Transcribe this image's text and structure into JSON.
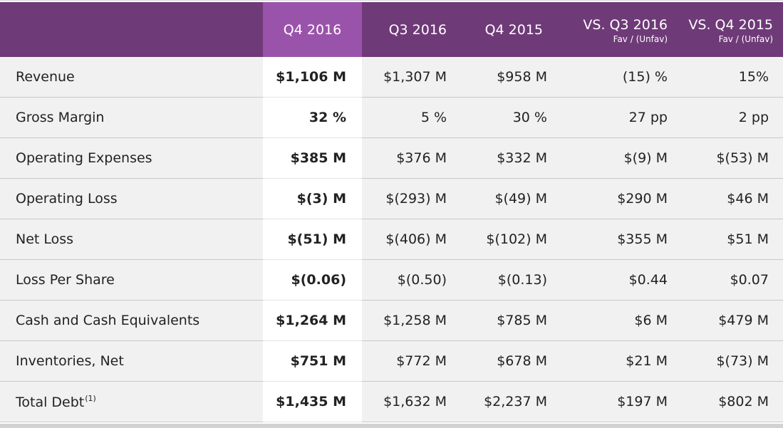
{
  "header": {
    "columns": [
      {
        "label": "Q4 2016",
        "sub": ""
      },
      {
        "label": "Q3 2016",
        "sub": ""
      },
      {
        "label": "Q4 2015",
        "sub": ""
      },
      {
        "label": "VS. Q3 2016",
        "sub": "Fav / (Unfav)"
      },
      {
        "label": "VS. Q4 2015",
        "sub": "Fav / (Unfav)"
      }
    ]
  },
  "rows": [
    {
      "label": "Revenue",
      "footnote": "",
      "values": [
        "$1,106 M",
        "$1,307 M",
        "$958 M",
        "(15) %",
        "15%"
      ]
    },
    {
      "label": "Gross Margin",
      "footnote": "",
      "values": [
        "32 %",
        "5 %",
        "30 %",
        "27 pp",
        "2 pp"
      ]
    },
    {
      "label": "Operating Expenses",
      "footnote": "",
      "values": [
        "$385 M",
        "$376 M",
        "$332 M",
        "$(9) M",
        "$(53) M"
      ]
    },
    {
      "label": "Operating Loss",
      "footnote": "",
      "values": [
        "$(3) M",
        "$(293) M",
        "$(49) M",
        "$290 M",
        "$46 M"
      ]
    },
    {
      "label": "Net Loss",
      "footnote": "",
      "values": [
        "$(51) M",
        "$(406) M",
        "$(102) M",
        "$355 M",
        "$51 M"
      ]
    },
    {
      "label": "Loss Per Share",
      "footnote": "",
      "values": [
        "$(0.06)",
        "$(0.50)",
        "$(0.13)",
        "$0.44",
        "$0.07"
      ]
    },
    {
      "label": "Cash and Cash Equivalents",
      "footnote": "",
      "values": [
        "$1,264 M",
        "$1,258 M",
        "$785 M",
        "$6 M",
        "$479 M"
      ]
    },
    {
      "label": "Inventories, Net",
      "footnote": "",
      "values": [
        "$751 M",
        "$772 M",
        "$678 M",
        "$21 M",
        "$(73) M"
      ]
    },
    {
      "label": "Total Debt",
      "footnote": "(1)",
      "values": [
        "$1,435 M",
        "$1,632 M",
        "$2,237 M",
        "$197 M",
        "$802 M"
      ]
    }
  ],
  "colors": {
    "header_bg": "#6f3a78",
    "highlight_header_bg": "#9a53aa",
    "row_bg": "#f1f1f1",
    "highlight_col_bg": "#ffffff"
  }
}
